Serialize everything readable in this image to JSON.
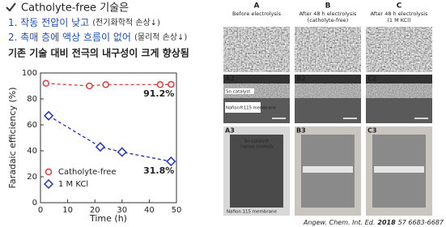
{
  "header": {
    "title": "Catholyte-free 기술은",
    "points": [
      {
        "text": "1. 작동 전압이 낮고",
        "note": "(전기화학적 손상↓)"
      },
      {
        "text": "2. 촉매 층에 액상 흐름이 없어",
        "note": "(물리적 손상↓)"
      }
    ],
    "conclusion": "기존 기술 대비 전극의 내구성이 크게 향상됨"
  },
  "chart_data": {
    "type": "line",
    "x_label": "Time (h)",
    "y_label": "Faradaic efficiency (%)",
    "xlim": [
      0,
      50
    ],
    "xticks": [
      0,
      10,
      20,
      30,
      40,
      50
    ],
    "ylim": [
      0,
      100
    ],
    "yticks": [
      0,
      20,
      40,
      60,
      80,
      100
    ],
    "legend": "lower-left",
    "series": [
      {
        "name": "Catholyte-free",
        "color": "#e23a3a",
        "marker": "circle",
        "x": [
          2,
          18,
          24,
          44,
          48
        ],
        "values": [
          92,
          90,
          91,
          91,
          91.2
        ],
        "value_labels": [
          null,
          null,
          null,
          null,
          "91.2%"
        ]
      },
      {
        "name": "1 M KCl",
        "color": "#2233bb",
        "marker": "diamond",
        "x": [
          3,
          22,
          30,
          48
        ],
        "values": [
          67,
          43,
          39,
          31.8
        ],
        "value_labels": [
          null,
          null,
          null,
          "31.8%"
        ]
      }
    ]
  },
  "figure": {
    "columns": [
      {
        "label": "A",
        "caption": [
          "Before electrolysis"
        ]
      },
      {
        "label": "B",
        "caption": [
          "After 48 h electrolysis",
          "(catholyte-free)"
        ]
      },
      {
        "label": "C",
        "caption": [
          "After 48 h electrolysis",
          "(1 M KCl)"
        ]
      }
    ],
    "panels": [
      [
        "A2",
        "B2",
        "C2"
      ],
      [
        "A3",
        "B3",
        "C3"
      ]
    ],
    "annotations": {
      "catalyst": "Sn catalyst",
      "membrane": "Nafion®115 membrane",
      "spray_catalyst": [
        "Sn catalyst",
        "(spray coated)"
      ],
      "photo_membrane": "Nafion 115 membrane"
    }
  },
  "citation": {
    "journal": "Angew. Chem. Int. Ed.",
    "year": "2018",
    "pages": "57 6683-6687"
  }
}
